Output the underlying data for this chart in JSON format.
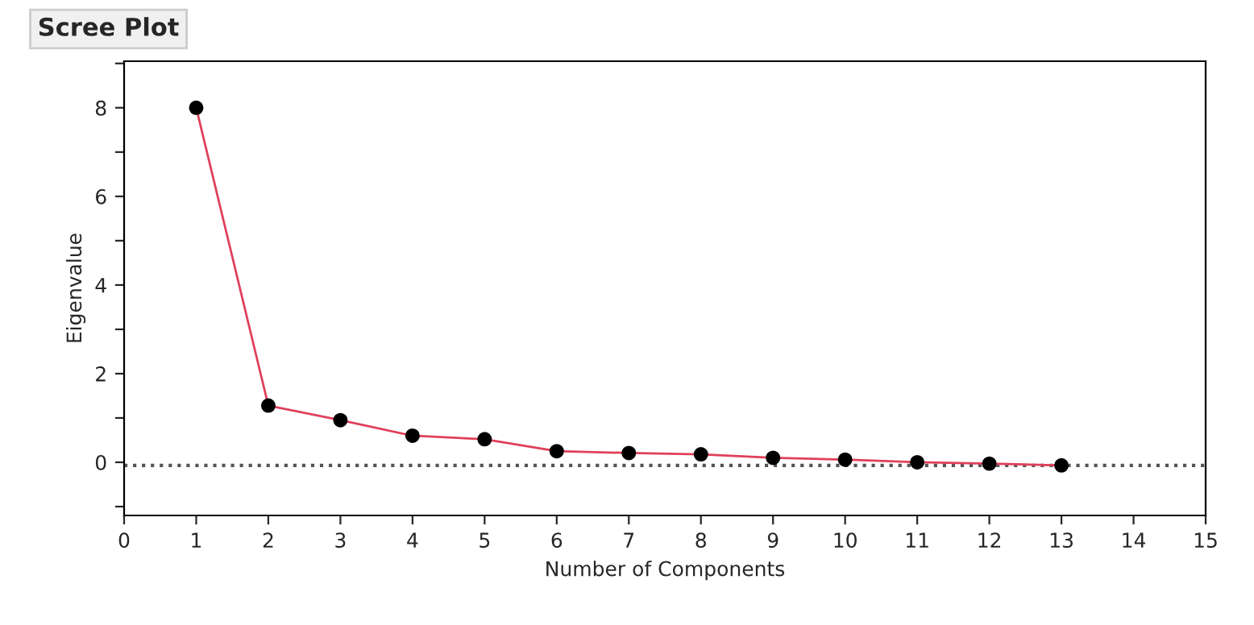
{
  "chart_data": {
    "type": "line",
    "title": "Scree Plot",
    "xlabel": "Number of Components",
    "ylabel": "Eigenvalue",
    "x": [
      1,
      2,
      3,
      4,
      5,
      6,
      7,
      8,
      9,
      10,
      11,
      12,
      13
    ],
    "series": [
      {
        "color": "#e0405a",
        "values": [
          8.0,
          1.28,
          0.95,
          0.6,
          0.52,
          0.25,
          0.21,
          0.18,
          0.1,
          0.06,
          0.0,
          -0.03,
          -0.07
        ]
      }
    ],
    "marker": "circle",
    "line_style": "solid",
    "xlim": [
      0,
      15
    ],
    "xticks": [
      0,
      1,
      2,
      3,
      4,
      5,
      6,
      7,
      8,
      9,
      10,
      11,
      12,
      13,
      14,
      15
    ],
    "ylim": [
      -1.2,
      9.05
    ],
    "yticks": [
      {
        "value": -1,
        "label": null
      },
      0,
      {
        "value": 1,
        "label": null
      },
      2,
      {
        "value": 3,
        "label": null
      },
      4,
      {
        "value": 5,
        "label": null
      },
      6,
      {
        "value": 7,
        "label": null
      },
      8,
      {
        "value": 9,
        "label": null
      }
    ],
    "ref_lines": [
      {
        "axis": "y",
        "value": -0.07,
        "color": "#555555",
        "line_style": "dotted"
      }
    ],
    "grid": false,
    "legend": false
  }
}
